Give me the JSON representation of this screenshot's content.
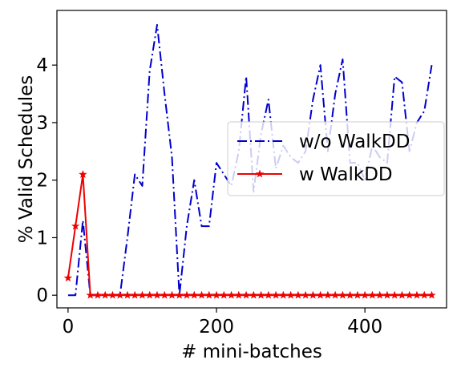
{
  "chart_data": {
    "type": "line",
    "title": "",
    "xlabel": "# mini-batches",
    "ylabel": "% Valid Schedules",
    "xlim": [
      -15,
      510
    ],
    "ylim": [
      -0.22,
      4.95
    ],
    "xticks": [
      0,
      200,
      400
    ],
    "yticks": [
      0,
      1,
      2,
      3,
      4
    ],
    "xtick_labels": [
      "0",
      "200",
      "400"
    ],
    "ytick_labels": [
      "0",
      "1",
      "2",
      "3",
      "4"
    ],
    "grid": false,
    "legend_position": "center-right",
    "series": [
      {
        "name": "w/o WalkDD",
        "color": "#0000cc",
        "linestyle": "dashdot",
        "marker": "none",
        "x": [
          0,
          10,
          20,
          30,
          40,
          50,
          60,
          70,
          80,
          90,
          100,
          110,
          120,
          130,
          140,
          150,
          160,
          170,
          180,
          190,
          200,
          210,
          220,
          230,
          240,
          250,
          260,
          270,
          280,
          290,
          300,
          310,
          320,
          330,
          340,
          350,
          360,
          370,
          380,
          390,
          400,
          410,
          420,
          430,
          440,
          450,
          460,
          470,
          480,
          490
        ],
        "values": [
          0,
          0,
          1.3,
          0,
          0,
          0,
          0,
          0,
          1.0,
          2.1,
          1.9,
          3.9,
          4.7,
          3.5,
          2.4,
          0,
          1.2,
          2.0,
          1.2,
          1.2,
          2.3,
          2.1,
          1.9,
          2.5,
          3.8,
          1.8,
          2.8,
          3.4,
          2.2,
          2.6,
          2.4,
          2.3,
          2.5,
          3.4,
          4.0,
          2.5,
          3.5,
          4.1,
          2.3,
          2.3,
          2.0,
          2.6,
          2.4,
          2.3,
          3.8,
          3.7,
          2.5,
          3.0,
          3.2,
          4.0
        ]
      },
      {
        "name": "w WalkDD",
        "color": "#ee0000",
        "linestyle": "solid",
        "marker": "star",
        "x": [
          0,
          10,
          20,
          30,
          40,
          50,
          60,
          70,
          80,
          90,
          100,
          110,
          120,
          130,
          140,
          150,
          160,
          170,
          180,
          190,
          200,
          210,
          220,
          230,
          240,
          250,
          260,
          270,
          280,
          290,
          300,
          310,
          320,
          330,
          340,
          350,
          360,
          370,
          380,
          390,
          400,
          410,
          420,
          430,
          440,
          450,
          460,
          470,
          480,
          490
        ],
        "values": [
          0.3,
          1.2,
          2.1,
          0,
          0,
          0,
          0,
          0,
          0,
          0,
          0,
          0,
          0,
          0,
          0,
          0,
          0,
          0,
          0,
          0,
          0,
          0,
          0,
          0,
          0,
          0,
          0,
          0,
          0,
          0,
          0,
          0,
          0,
          0,
          0,
          0,
          0,
          0,
          0,
          0,
          0,
          0,
          0,
          0,
          0,
          0,
          0,
          0,
          0,
          0
        ]
      }
    ]
  }
}
